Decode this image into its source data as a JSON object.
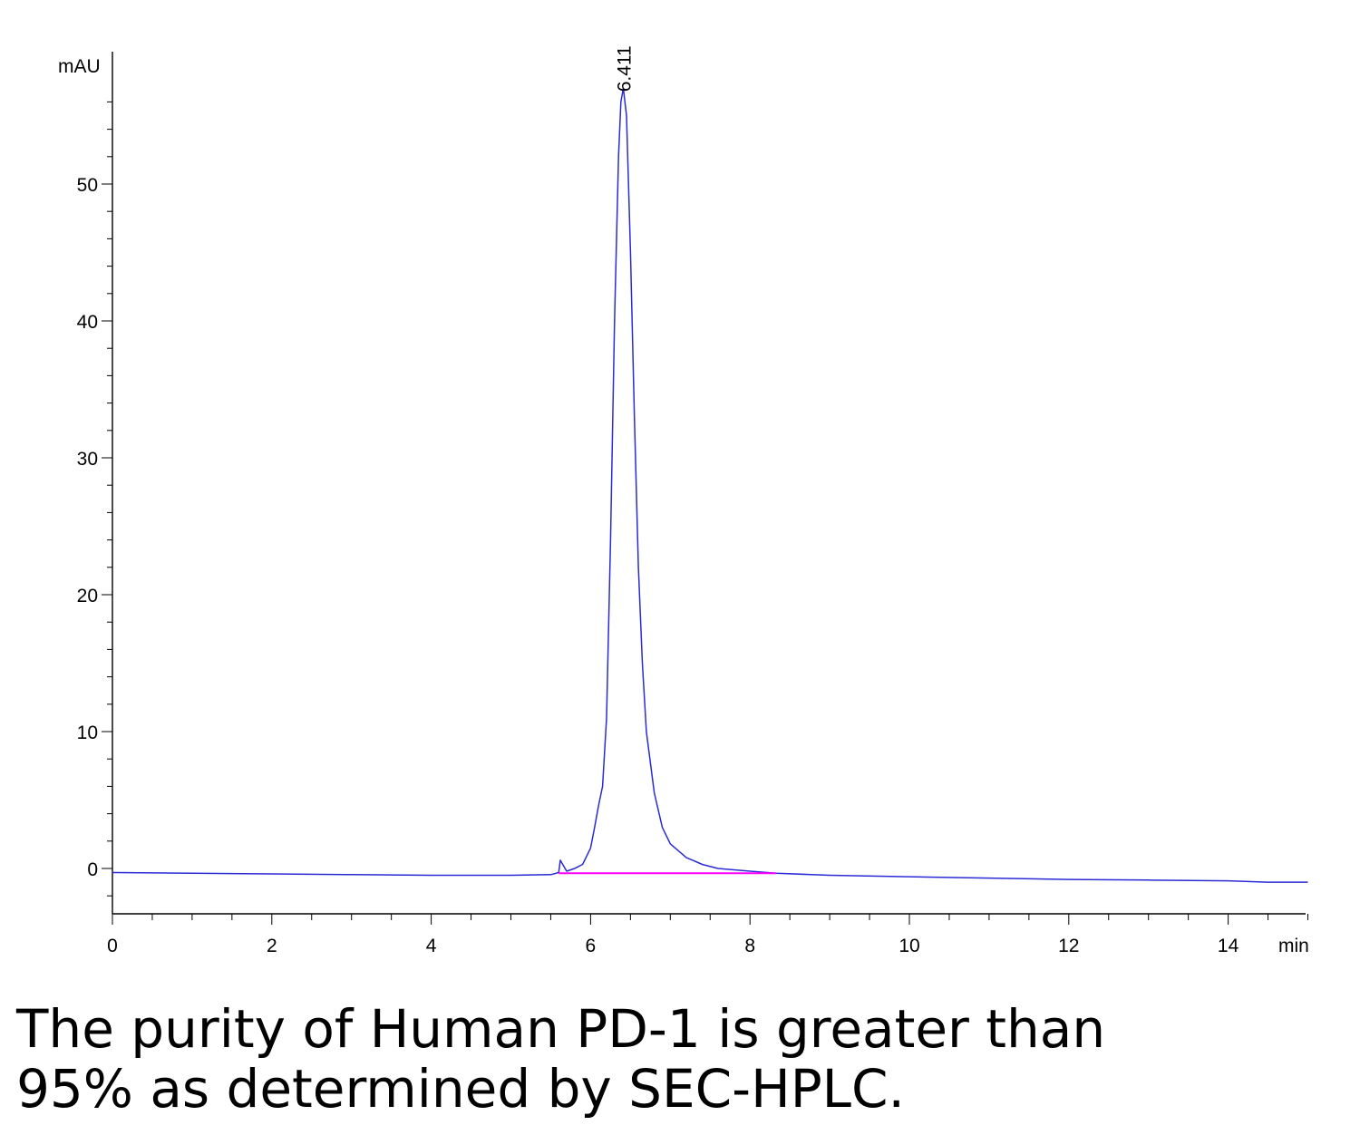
{
  "chart_data": {
    "type": "line",
    "title": "",
    "xlabel": "",
    "ylabel": "",
    "x_unit": "min",
    "y_unit": "mAU",
    "xlim": [
      0,
      15
    ],
    "ylim": [
      -3.3,
      58
    ],
    "x_ticks": [
      "0",
      "2",
      "4",
      "6",
      "8",
      "10",
      "12",
      "14"
    ],
    "y_ticks": [
      "0",
      "10",
      "20",
      "30",
      "40",
      "50"
    ],
    "grid": false,
    "series": [
      {
        "color": "#2b2bd6",
        "x": [
          0,
          1,
          2,
          3,
          4,
          5,
          5.5,
          5.6,
          5.62,
          5.7,
          5.8,
          5.9,
          6.0,
          6.05,
          6.1,
          6.15,
          6.2,
          6.25,
          6.3,
          6.35,
          6.38,
          6.411,
          6.45,
          6.5,
          6.55,
          6.6,
          6.65,
          6.7,
          6.8,
          6.9,
          7.0,
          7.2,
          7.4,
          7.6,
          8.0,
          8.33,
          9,
          10,
          11,
          12,
          13,
          14,
          14.5,
          15
        ],
        "y": [
          -0.3,
          -0.35,
          -0.4,
          -0.45,
          -0.5,
          -0.5,
          -0.45,
          -0.3,
          0.6,
          -0.2,
          0.0,
          0.3,
          1.5,
          3.0,
          4.6,
          6.0,
          11.0,
          24.0,
          40.0,
          52.0,
          56.0,
          57.0,
          55.0,
          45.0,
          33.0,
          22.0,
          15.0,
          10.0,
          5.5,
          3.0,
          1.8,
          0.8,
          0.3,
          0.0,
          -0.2,
          -0.35,
          -0.5,
          -0.6,
          -0.7,
          -0.8,
          -0.85,
          -0.9,
          -1.0,
          -1.0
        ]
      },
      {
        "color": "#ff00ff",
        "x": [
          5.6,
          8.33
        ],
        "y": [
          -0.35,
          -0.35
        ]
      }
    ],
    "annotations": [
      {
        "text": "6.411",
        "x": 6.411,
        "y": 57
      }
    ]
  },
  "caption": {
    "line1": "The purity of Human PD-1 is greater than",
    "line2": "95% as determined by SEC-HPLC."
  }
}
